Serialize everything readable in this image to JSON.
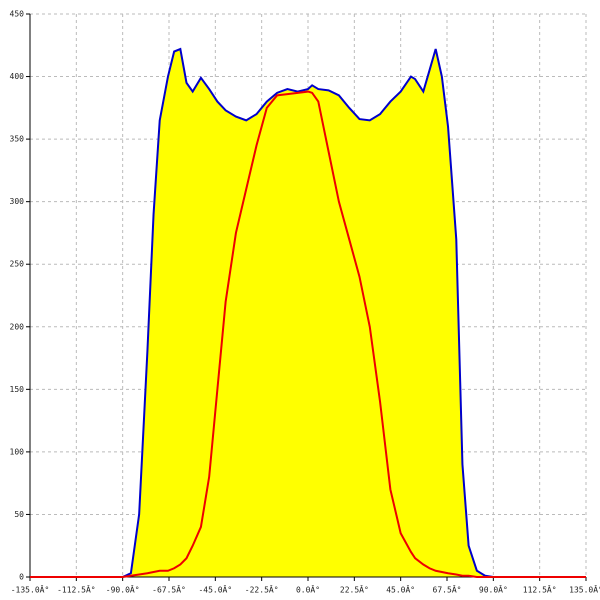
{
  "chart_data": {
    "type": "area-line",
    "x": [
      -135,
      -95,
      -90,
      -86,
      -82,
      -78,
      -75,
      -72,
      -68,
      -65,
      -62,
      -59,
      -56,
      -52,
      -48,
      -44,
      -40,
      -35,
      -30,
      -25,
      -20,
      -15,
      -10,
      -5,
      0,
      2,
      5,
      10,
      15,
      20,
      25,
      30,
      35,
      40,
      45,
      50,
      52,
      56,
      59,
      62,
      65,
      68,
      72,
      75,
      78,
      82,
      86,
      90,
      95,
      135
    ],
    "series": [
      {
        "color": "#0000cc",
        "fill": "#ffff00",
        "values": [
          0,
          0,
          0,
          3,
          50,
          180,
          290,
          365,
          400,
          420,
          422,
          395,
          388,
          399,
          390,
          380,
          373,
          368,
          365,
          370,
          380,
          387,
          390,
          388,
          390,
          393,
          390,
          389,
          385,
          375,
          366,
          365,
          370,
          380,
          388,
          400,
          398,
          388,
          405,
          422,
          400,
          360,
          270,
          90,
          25,
          5,
          1,
          0,
          0,
          0
        ]
      },
      {
        "color": "#ee0000",
        "values": [
          0,
          0,
          0,
          1,
          2,
          3,
          4,
          5,
          5,
          7,
          10,
          15,
          25,
          40,
          80,
          150,
          220,
          275,
          310,
          345,
          375,
          385,
          386,
          387,
          388,
          387,
          380,
          340,
          300,
          270,
          240,
          200,
          140,
          70,
          35,
          20,
          15,
          10,
          7,
          5,
          4,
          3,
          2,
          1,
          1,
          0,
          0,
          0,
          0,
          0
        ]
      }
    ],
    "xlim": [
      -135,
      135
    ],
    "ylim": [
      0,
      450
    ],
    "xticks": [
      {
        "value": -135,
        "label": "-135.0Â°"
      },
      {
        "value": -112.5,
        "label": "-112.5Â°"
      },
      {
        "value": -90,
        "label": "-90.0Â°"
      },
      {
        "value": -67.5,
        "label": "-67.5Â°"
      },
      {
        "value": -45,
        "label": "-45.0Â°"
      },
      {
        "value": -22.5,
        "label": "-22.5Â°"
      },
      {
        "value": 0,
        "label": "0.0Â°"
      },
      {
        "value": 22.5,
        "label": "22.5Â°"
      },
      {
        "value": 45,
        "label": "45.0Â°"
      },
      {
        "value": 67.5,
        "label": "67.5Â°"
      },
      {
        "value": 90,
        "label": "90.0Â°"
      },
      {
        "value": 112.5,
        "label": "112.5Â°"
      },
      {
        "value": 135,
        "label": "135.0Â°"
      }
    ],
    "yticks": [
      0,
      50,
      100,
      150,
      200,
      250,
      300,
      350,
      400,
      450
    ],
    "grid": true
  }
}
